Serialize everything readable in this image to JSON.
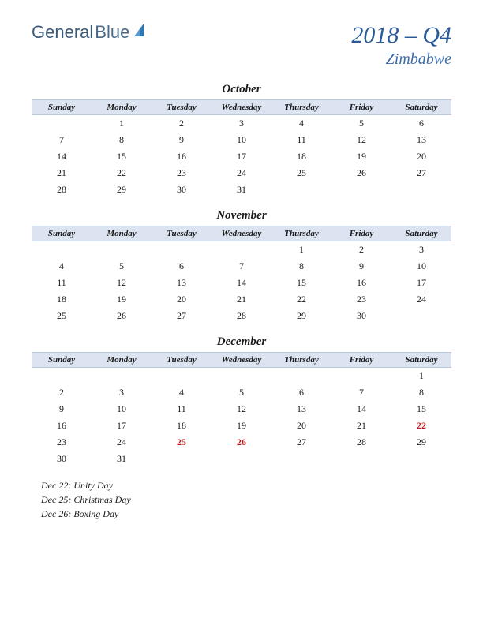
{
  "logo": {
    "text1": "General",
    "text2": "Blue"
  },
  "title": {
    "main": "2018 – Q4",
    "sub": "Zimbabwe"
  },
  "colors": {
    "header_bg": "#dce4f2",
    "header_border": "#bac8de",
    "title_color": "#2a5a9a",
    "sub_color": "#3a6aaa",
    "text_color": "#1a1a1a",
    "holiday_color": "#c01818",
    "logo_sail": "#2a7ab8"
  },
  "day_headers": [
    "Sunday",
    "Monday",
    "Tuesday",
    "Wednesday",
    "Thursday",
    "Friday",
    "Saturday"
  ],
  "months": [
    {
      "name": "October",
      "weeks": [
        [
          "",
          "1",
          "2",
          "3",
          "4",
          "5",
          "6"
        ],
        [
          "7",
          "8",
          "9",
          "10",
          "11",
          "12",
          "13"
        ],
        [
          "14",
          "15",
          "16",
          "17",
          "18",
          "19",
          "20"
        ],
        [
          "21",
          "22",
          "23",
          "24",
          "25",
          "26",
          "27"
        ],
        [
          "28",
          "29",
          "30",
          "31",
          "",
          "",
          ""
        ]
      ],
      "holidays": []
    },
    {
      "name": "November",
      "weeks": [
        [
          "",
          "",
          "",
          "",
          "1",
          "2",
          "3"
        ],
        [
          "4",
          "5",
          "6",
          "7",
          "8",
          "9",
          "10"
        ],
        [
          "11",
          "12",
          "13",
          "14",
          "15",
          "16",
          "17"
        ],
        [
          "18",
          "19",
          "20",
          "21",
          "22",
          "23",
          "24"
        ],
        [
          "25",
          "26",
          "27",
          "28",
          "29",
          "30",
          ""
        ]
      ],
      "holidays": []
    },
    {
      "name": "December",
      "weeks": [
        [
          "",
          "",
          "",
          "",
          "",
          "",
          "1"
        ],
        [
          "2",
          "3",
          "4",
          "5",
          "6",
          "7",
          "8"
        ],
        [
          "9",
          "10",
          "11",
          "12",
          "13",
          "14",
          "15"
        ],
        [
          "16",
          "17",
          "18",
          "19",
          "20",
          "21",
          "22"
        ],
        [
          "23",
          "24",
          "25",
          "26",
          "27",
          "28",
          "29"
        ],
        [
          "30",
          "31",
          "",
          "",
          "",
          "",
          ""
        ]
      ],
      "holidays": [
        "22",
        "25",
        "26"
      ]
    }
  ],
  "holiday_list": [
    "Dec 22: Unity Day",
    "Dec 25: Christmas Day",
    "Dec 26: Boxing Day"
  ]
}
